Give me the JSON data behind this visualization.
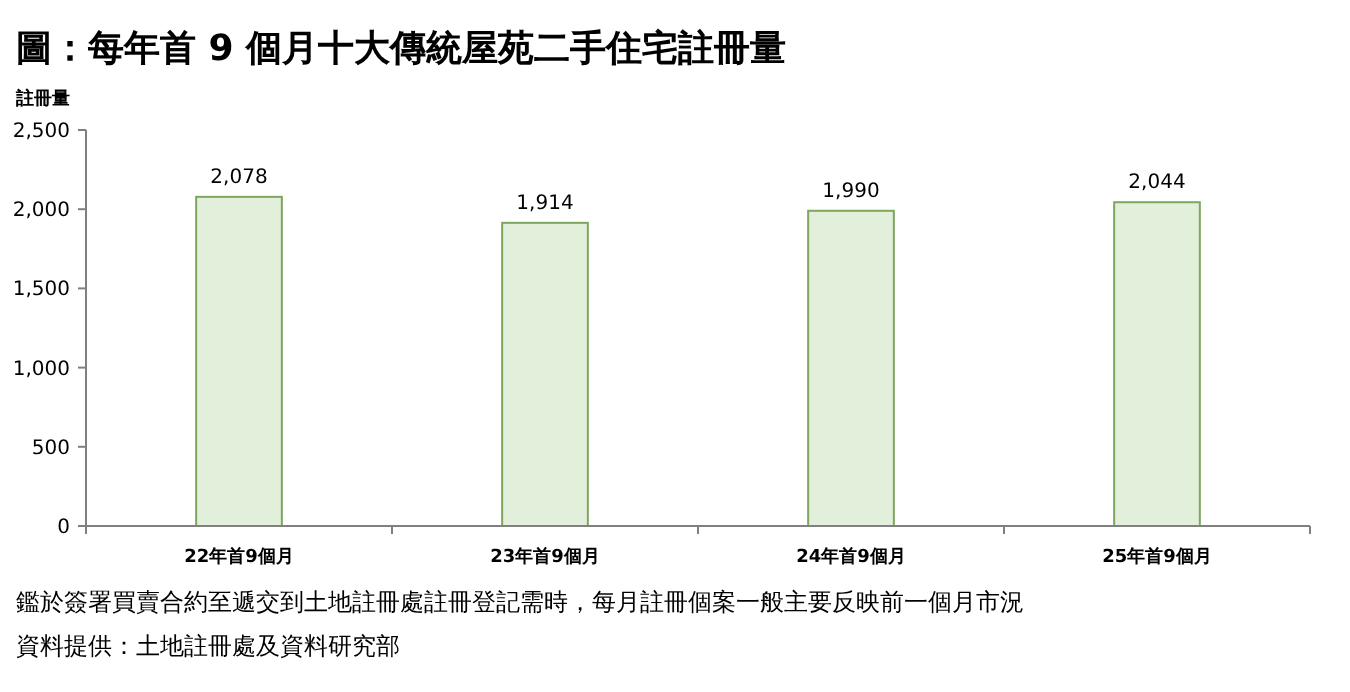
{
  "chart_data": {
    "type": "bar",
    "title": "圖：每年首 9 個月十大傳統屋苑二手住宅註冊量",
    "ylabel": "註冊量",
    "categories": [
      "22年首9個月",
      "23年首9個月",
      "24年首9個月",
      "25年首9個月"
    ],
    "values": [
      2078,
      1914,
      1990,
      2044
    ],
    "value_labels": [
      "2,078",
      "1,914",
      "1,990",
      "2,044"
    ],
    "color": "#e2efda",
    "ylim": [
      0,
      2500
    ],
    "yticks": [
      {
        "value": 0,
        "label": "0"
      },
      {
        "value": 500,
        "label": "500"
      },
      {
        "value": 1000,
        "label": "1,000"
      },
      {
        "value": 1500,
        "label": "1,500"
      },
      {
        "value": 2000,
        "label": "2,000"
      },
      {
        "value": 2500,
        "label": "2,500"
      }
    ],
    "annotations": [
      "鑑於簽署買賣合約至遞交到土地註冊處註冊登記需時，每月註冊個案一般主要反映前一個月市況",
      "資料提供：土地註冊處及資料研究部"
    ]
  }
}
